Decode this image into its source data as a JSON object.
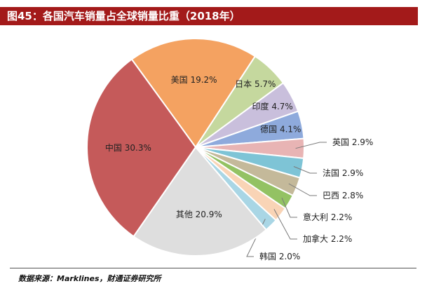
{
  "header": {
    "title": "图45：各国汽车销量占全球销量比重（2018年）"
  },
  "footer": {
    "source": "数据来源：Marklines，财通证券研究所"
  },
  "chart_data": {
    "type": "pie",
    "title": "图45：各国汽车销量占全球销量比重（2018年）",
    "slices": [
      {
        "name": "美国",
        "label": "美国 19.2%",
        "value": 19.2,
        "color": "#f4a261",
        "label_pos": "inside"
      },
      {
        "name": "日本",
        "label": "日本 5.7%",
        "value": 5.7,
        "color": "#c5d89e",
        "label_pos": "inside"
      },
      {
        "name": "印度",
        "label": "印度 4.7%",
        "value": 4.7,
        "color": "#c9bfdc",
        "label_pos": "inside"
      },
      {
        "name": "德国",
        "label": "德国 4.1%",
        "value": 4.1,
        "color": "#8eaadc",
        "label_pos": "inside"
      },
      {
        "name": "英国",
        "label": "英国 2.9%",
        "value": 2.9,
        "color": "#e8b4b4",
        "label_pos": "outside"
      },
      {
        "name": "法国",
        "label": "法国 2.9%",
        "value": 2.9,
        "color": "#7ec4d6",
        "label_pos": "outside"
      },
      {
        "name": "巴西",
        "label": "巴西 2.8%",
        "value": 2.8,
        "color": "#c4b99a",
        "label_pos": "outside"
      },
      {
        "name": "意大利",
        "label": "意大利 2.2%",
        "value": 2.2,
        "color": "#93c263",
        "label_pos": "outside"
      },
      {
        "name": "加拿大",
        "label": "加拿大 2.2%",
        "value": 2.2,
        "color": "#f9d4b6",
        "label_pos": "outside"
      },
      {
        "name": "韩国",
        "label": "韩国 2.0%",
        "value": 2.0,
        "color": "#a9d6e5",
        "label_pos": "outside"
      },
      {
        "name": "其他",
        "label": "其他 20.9%",
        "value": 20.9,
        "color": "#dedede",
        "label_pos": "inside"
      },
      {
        "name": "中国",
        "label": "中国 30.3%",
        "value": 30.3,
        "color": "#c55a5a",
        "label_pos": "inside"
      }
    ]
  }
}
